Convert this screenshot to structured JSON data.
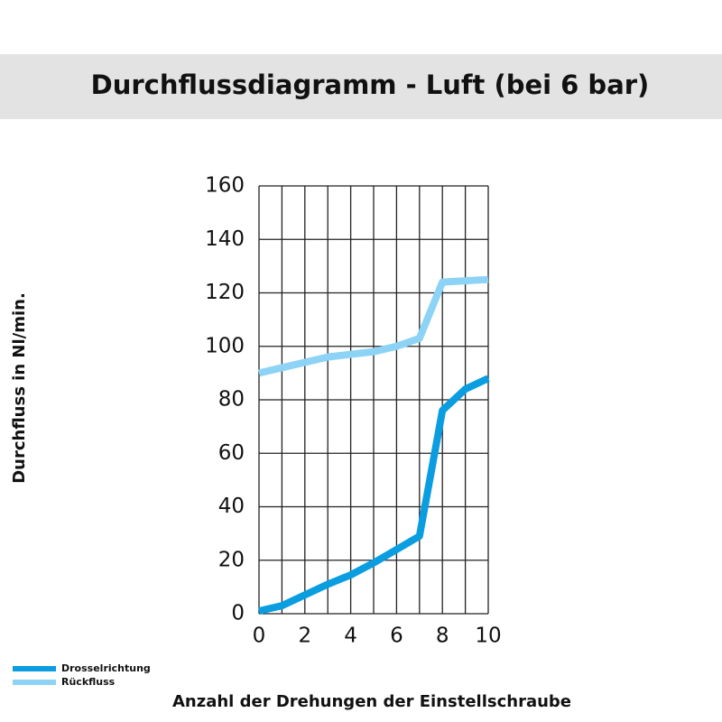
{
  "chart_data": {
    "type": "line",
    "title": "Durchflussdiagramm - Luft (bei 6 bar)",
    "x_label": "Anzahl der Drehungen der Einstellschraube",
    "y_label": "Durchfluss in Nl/min.",
    "x": [
      0,
      1,
      2,
      3,
      4,
      5,
      6,
      7,
      8,
      9,
      10
    ],
    "series": [
      {
        "name": "Drosselrichtung",
        "color": "#0a9de0",
        "values": [
          1,
          3,
          7,
          11,
          14.5,
          19,
          24,
          29,
          76,
          84,
          88
        ]
      },
      {
        "name": "Rückfluss",
        "color": "#8dd3f5",
        "values": [
          90,
          92,
          94,
          96,
          97,
          98,
          100,
          103,
          124,
          124.5,
          125
        ]
      }
    ],
    "xlim": [
      0,
      10
    ],
    "xticks": [
      0,
      2,
      4,
      6,
      8,
      10
    ],
    "x_grid": [
      0,
      1,
      2,
      3,
      4,
      5,
      6,
      7,
      8,
      9,
      10
    ],
    "ylim": [
      0,
      160
    ],
    "yticks": [
      0,
      20,
      40,
      60,
      80,
      100,
      120,
      140,
      160
    ],
    "grid": true,
    "legend": "bottom-left"
  }
}
